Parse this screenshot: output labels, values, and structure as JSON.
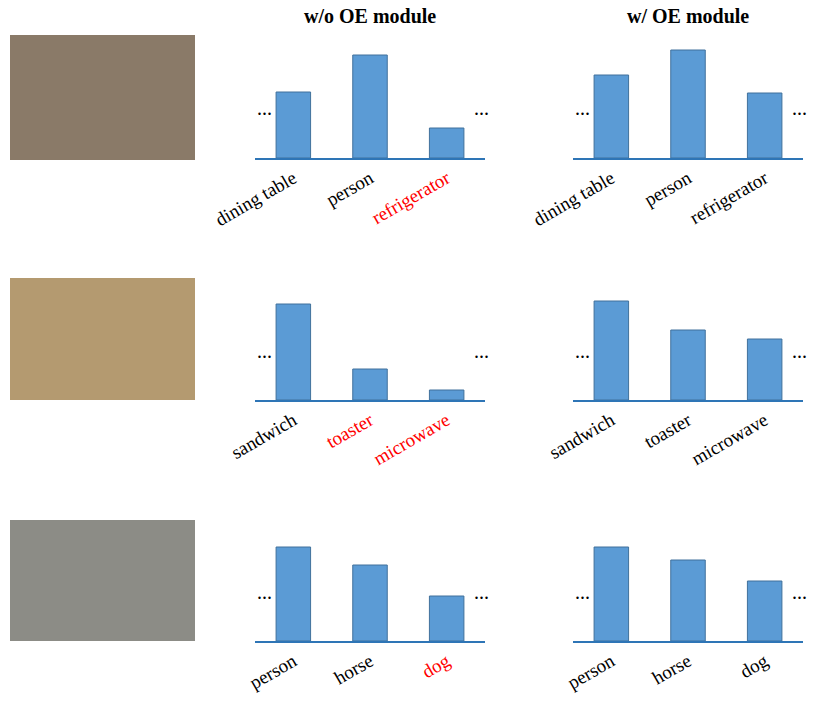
{
  "column_titles": [
    "w/o OE module",
    "w/ OE module"
  ],
  "chart_data": [
    {
      "type": "bar",
      "categories": [
        "dining table",
        "person",
        "refrigerator"
      ],
      "values": [
        66,
        103,
        30
      ],
      "label_colors": [
        "black",
        "black",
        "red"
      ],
      "annotations": [
        "...",
        "..."
      ],
      "color": "#5b9bd5",
      "ylim": [
        0,
        110
      ],
      "tick_labels": "x"
    },
    {
      "type": "bar",
      "categories": [
        "dining table",
        "person",
        "refrigerator"
      ],
      "values": [
        83,
        108,
        65
      ],
      "label_colors": [
        "black",
        "black",
        "black"
      ],
      "annotations": [
        "...",
        "..."
      ],
      "color": "#5b9bd5",
      "ylim": [
        0,
        110
      ],
      "tick_labels": "x"
    },
    {
      "type": "bar",
      "categories": [
        "sandwich",
        "toaster",
        "microwave"
      ],
      "values": [
        96,
        31,
        10
      ],
      "label_colors": [
        "black",
        "red",
        "red"
      ],
      "annotations": [
        "...",
        "..."
      ],
      "color": "#5b9bd5",
      "ylim": [
        0,
        110
      ],
      "tick_labels": "x"
    },
    {
      "type": "bar",
      "categories": [
        "sandwich",
        "toaster",
        "microwave"
      ],
      "values": [
        99,
        70,
        61
      ],
      "label_colors": [
        "black",
        "black",
        "black"
      ],
      "annotations": [
        "...",
        "..."
      ],
      "color": "#5b9bd5",
      "ylim": [
        0,
        110
      ],
      "tick_labels": "x"
    },
    {
      "type": "bar",
      "categories": [
        "person",
        "horse",
        "dog"
      ],
      "values": [
        94,
        76,
        45
      ],
      "label_colors": [
        "black",
        "black",
        "red"
      ],
      "annotations": [
        "...",
        "..."
      ],
      "color": "#5b9bd5",
      "ylim": [
        0,
        110
      ],
      "tick_labels": "x"
    },
    {
      "type": "bar",
      "categories": [
        "person",
        "horse",
        "dog"
      ],
      "values": [
        94,
        81,
        60
      ],
      "label_colors": [
        "black",
        "black",
        "black"
      ],
      "annotations": [
        "...",
        "..."
      ],
      "color": "#5b9bd5",
      "ylim": [
        0,
        110
      ],
      "tick_labels": "x"
    }
  ]
}
